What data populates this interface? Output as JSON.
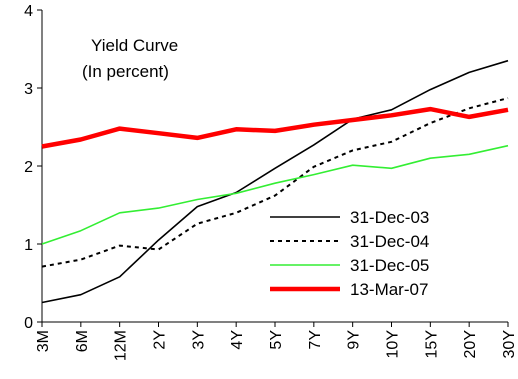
{
  "chart_data": {
    "type": "line",
    "title": "Yield Curve",
    "subtitle": "(In percent)",
    "categories": [
      "3M",
      "6M",
      "12M",
      "2Y",
      "3Y",
      "4Y",
      "5Y",
      "7Y",
      "9Y",
      "10Y",
      "15Y",
      "20Y",
      "30Y"
    ],
    "ylim": [
      0,
      4
    ],
    "yticks": [
      "0",
      "1",
      "2",
      "3",
      "4"
    ],
    "grid": false,
    "legend_position": "bottom-right",
    "series": [
      {
        "name": "31-Dec-03",
        "color": "#000000",
        "style": "solid",
        "values": [
          0.25,
          0.35,
          0.58,
          1.05,
          1.48,
          1.66,
          1.97,
          2.27,
          2.6,
          2.72,
          2.98,
          3.2,
          3.35
        ]
      },
      {
        "name": "31-Dec-04",
        "color": "#000000",
        "style": "dotted",
        "values": [
          0.71,
          0.8,
          0.98,
          0.93,
          1.26,
          1.4,
          1.62,
          1.99,
          2.2,
          2.31,
          2.55,
          2.74,
          2.87
        ]
      },
      {
        "name": "31-Dec-05",
        "color": "#33ee33",
        "style": "solid",
        "values": [
          1.0,
          1.17,
          1.4,
          1.46,
          1.57,
          1.65,
          1.78,
          1.89,
          2.01,
          1.97,
          2.1,
          2.15,
          2.26
        ]
      },
      {
        "name": "13-Mar-07",
        "color": "#ff0000",
        "style": "thick",
        "values": [
          2.25,
          2.34,
          2.48,
          2.42,
          2.36,
          2.47,
          2.45,
          2.53,
          2.59,
          2.65,
          2.73,
          2.63,
          2.72
        ]
      }
    ]
  }
}
